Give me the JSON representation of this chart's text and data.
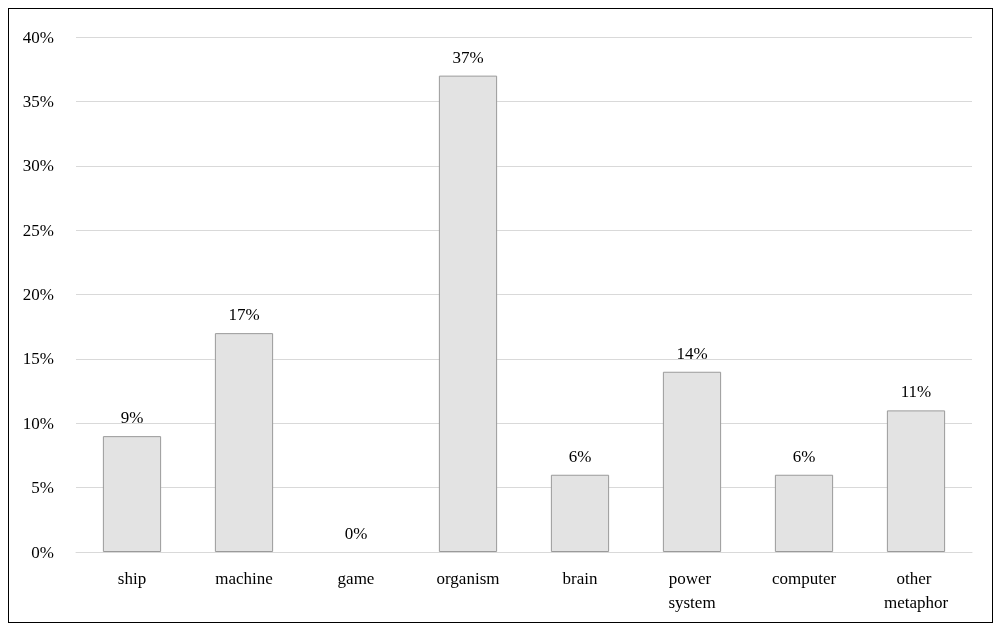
{
  "chart_data": {
    "type": "bar",
    "categories": [
      "ship",
      "machine",
      "game",
      "organism",
      "brain",
      "power system",
      "computer",
      "other metaphor"
    ],
    "values": [
      9,
      17,
      0,
      37,
      6,
      14,
      6,
      11
    ],
    "value_labels": [
      "9%",
      "17%",
      "0%",
      "37%",
      "6%",
      "14%",
      "6%",
      "11%"
    ],
    "color": "#e3e3e3",
    "ylim": [
      0,
      40
    ],
    "yticks": [
      {
        "value": 0,
        "label": "0%"
      },
      {
        "value": 5,
        "label": "5%"
      },
      {
        "value": 10,
        "label": "10%"
      },
      {
        "value": 15,
        "label": "15%"
      },
      {
        "value": 20,
        "label": "20%"
      },
      {
        "value": 25,
        "label": "25%"
      },
      {
        "value": 30,
        "label": "30%"
      },
      {
        "value": 35,
        "label": "35%"
      },
      {
        "value": 40,
        "label": "40%"
      }
    ],
    "grid": "y"
  }
}
